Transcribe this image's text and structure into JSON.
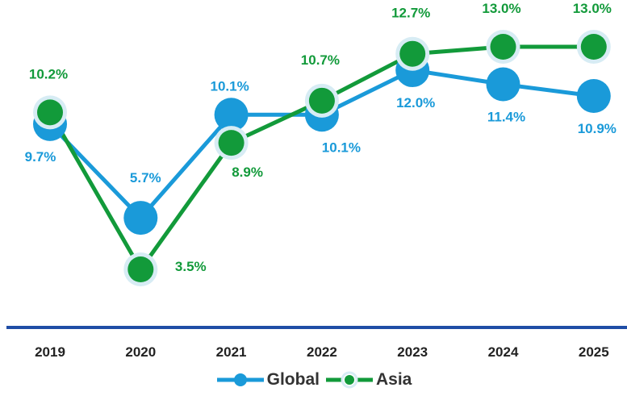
{
  "chart_data": {
    "type": "line",
    "categories": [
      "2019",
      "2020",
      "2021",
      "2022",
      "2023",
      "2024",
      "2025"
    ],
    "series": [
      {
        "name": "Global",
        "values": [
          9.7,
          5.7,
          10.1,
          10.1,
          12.0,
          11.4,
          10.9
        ],
        "labels": [
          "9.7%",
          "5.7%",
          "10.1%",
          "10.1%",
          "12.0%",
          "11.4%",
          "10.9%"
        ],
        "color": "#1a9ad9"
      },
      {
        "name": "Asia",
        "values": [
          10.2,
          3.5,
          8.9,
          10.7,
          12.7,
          13.0,
          13.0
        ],
        "labels": [
          "10.2%",
          "3.5%",
          "8.9%",
          "10.7%",
          "12.7%",
          "13.0%",
          "13.0%"
        ],
        "color": "#129a3a"
      }
    ],
    "ylim": [
      0,
      13.6
    ],
    "grid": false,
    "legend_position": "bottom",
    "axis_color": "#1f4da6"
  }
}
